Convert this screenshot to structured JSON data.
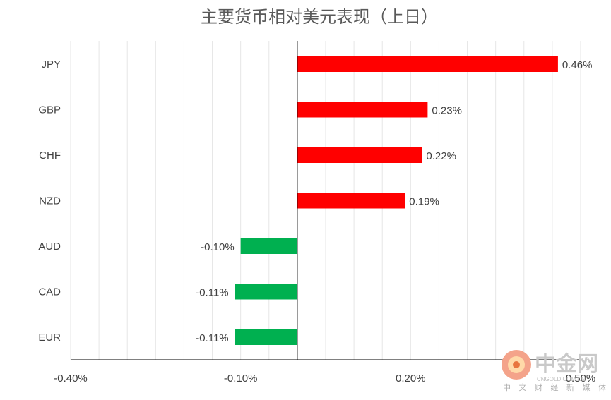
{
  "chart_data": {
    "type": "bar",
    "orientation": "horizontal",
    "title": "主要货币相对美元表现（上日）",
    "categories": [
      "JPY",
      "GBP",
      "CHF",
      "NZD",
      "AUD",
      "CAD",
      "EUR"
    ],
    "values": [
      0.46,
      0.23,
      0.22,
      0.19,
      -0.1,
      -0.11,
      -0.11
    ],
    "value_labels": [
      "0.46%",
      "0.23%",
      "0.22%",
      "0.19%",
      "-0.10%",
      "-0.11%",
      "-0.11%"
    ],
    "xlim": [
      -0.4,
      0.5
    ],
    "x_ticks": [
      -0.4,
      -0.1,
      0.2,
      0.5
    ],
    "x_tick_labels": [
      "-0.40%",
      "-0.10%",
      "0.20%",
      "0.50%"
    ],
    "grid": true,
    "legend": "none",
    "colors": {
      "positive": "#ff0000",
      "negative": "#00b050",
      "grid": "#e6e6e6",
      "axis": "#000000"
    }
  },
  "watermark": {
    "name": "中金网",
    "domain": "CNGOLD.COM.CN",
    "tagline": "中 文 财 经 新 媒 体"
  }
}
